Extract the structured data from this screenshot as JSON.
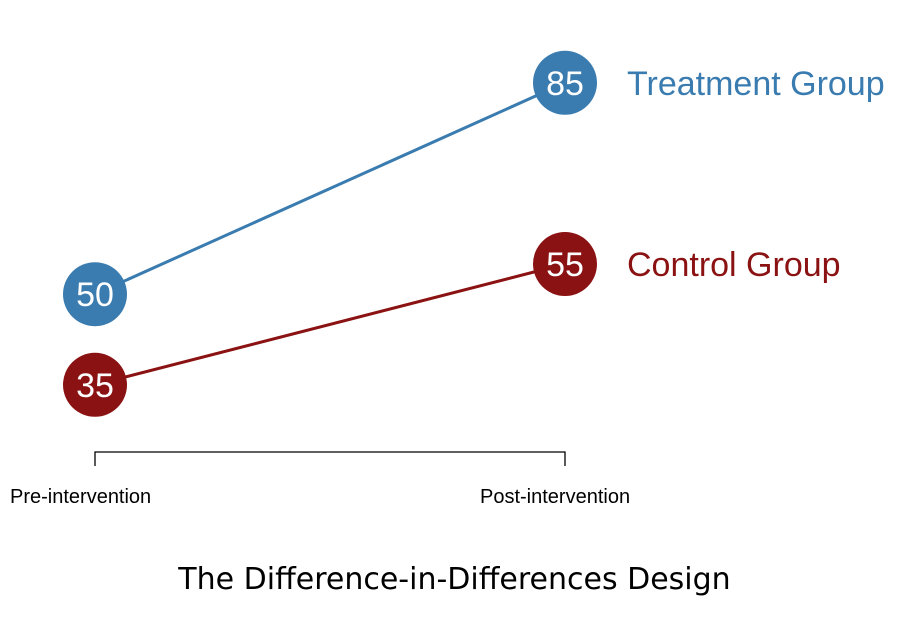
{
  "caption": "The Difference-in-Differences Design",
  "chart_data": {
    "type": "line",
    "categories": [
      "Pre-intervention",
      "Post-intervention"
    ],
    "series": [
      {
        "name": "Treatment Group",
        "values": [
          50,
          85
        ],
        "color": "#3A7CB0"
      },
      {
        "name": "Control Group",
        "values": [
          35,
          55
        ],
        "color": "#8B1212"
      }
    ],
    "data_labels": true,
    "legend_placement": "right, at line ends",
    "grid": false,
    "y_axis_visible": false
  }
}
